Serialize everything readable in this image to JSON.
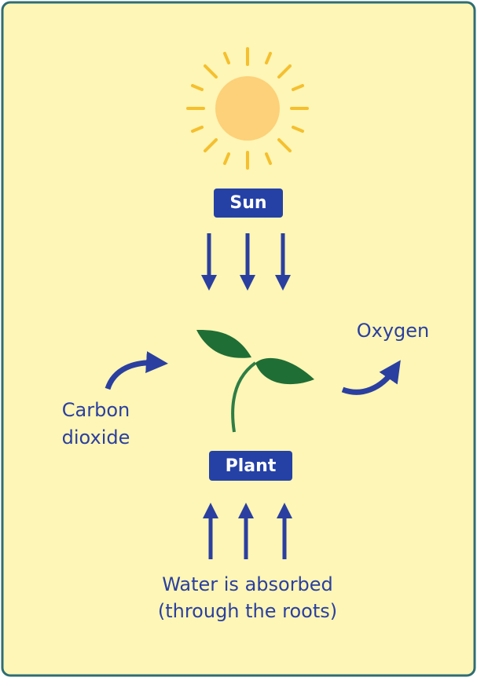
{
  "nodes": {
    "sun": {
      "label": "Sun"
    },
    "plant": {
      "label": "Plant"
    }
  },
  "labels": {
    "oxygen": "Oxygen",
    "carbon_dioxide": [
      "Carbon",
      "dioxide"
    ],
    "water": [
      "Water is absorbed",
      "(through the roots)"
    ]
  }
}
